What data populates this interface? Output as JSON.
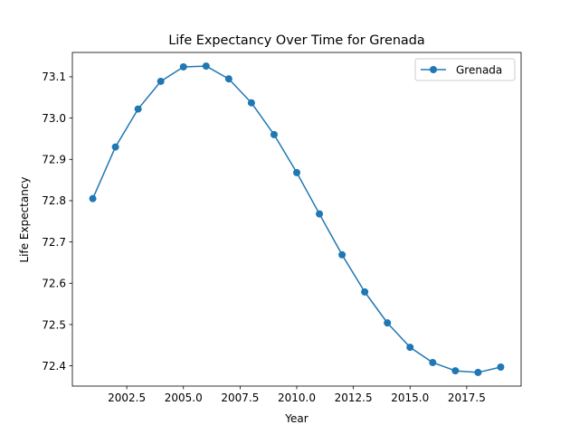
{
  "chart_data": {
    "type": "line",
    "title": "Life Expectancy Over Time for Grenada",
    "xlabel": "Year",
    "ylabel": "Life Expectancy",
    "xlim": [
      2000.1,
      2019.9
    ],
    "ylim": [
      72.351,
      73.159
    ],
    "xticks": [
      2002.5,
      2005.0,
      2007.5,
      2010.0,
      2012.5,
      2015.0,
      2017.5
    ],
    "xtick_labels": [
      "2002.5",
      "2005.0",
      "2007.5",
      "2010.0",
      "2012.5",
      "2015.0",
      "2017.5"
    ],
    "yticks": [
      72.4,
      72.5,
      72.6,
      72.7,
      72.8,
      72.9,
      73.0,
      73.1
    ],
    "ytick_labels": [
      "72.4",
      "72.5",
      "72.6",
      "72.7",
      "72.8",
      "72.9",
      "73.0",
      "73.1"
    ],
    "grid": false,
    "legend_position": "top-right",
    "series": [
      {
        "name": "Grenada",
        "color": "#1f77b4",
        "marker": "circle",
        "x": [
          2001,
          2002,
          2003,
          2004,
          2005,
          2006,
          2007,
          2008,
          2009,
          2010,
          2011,
          2012,
          2013,
          2014,
          2015,
          2016,
          2017,
          2018,
          2019
        ],
        "y": [
          72.805,
          72.93,
          73.022,
          73.089,
          73.124,
          73.126,
          73.095,
          73.037,
          72.96,
          72.868,
          72.768,
          72.669,
          72.579,
          72.504,
          72.445,
          72.408,
          72.388,
          72.384,
          72.397
        ]
      }
    ]
  }
}
